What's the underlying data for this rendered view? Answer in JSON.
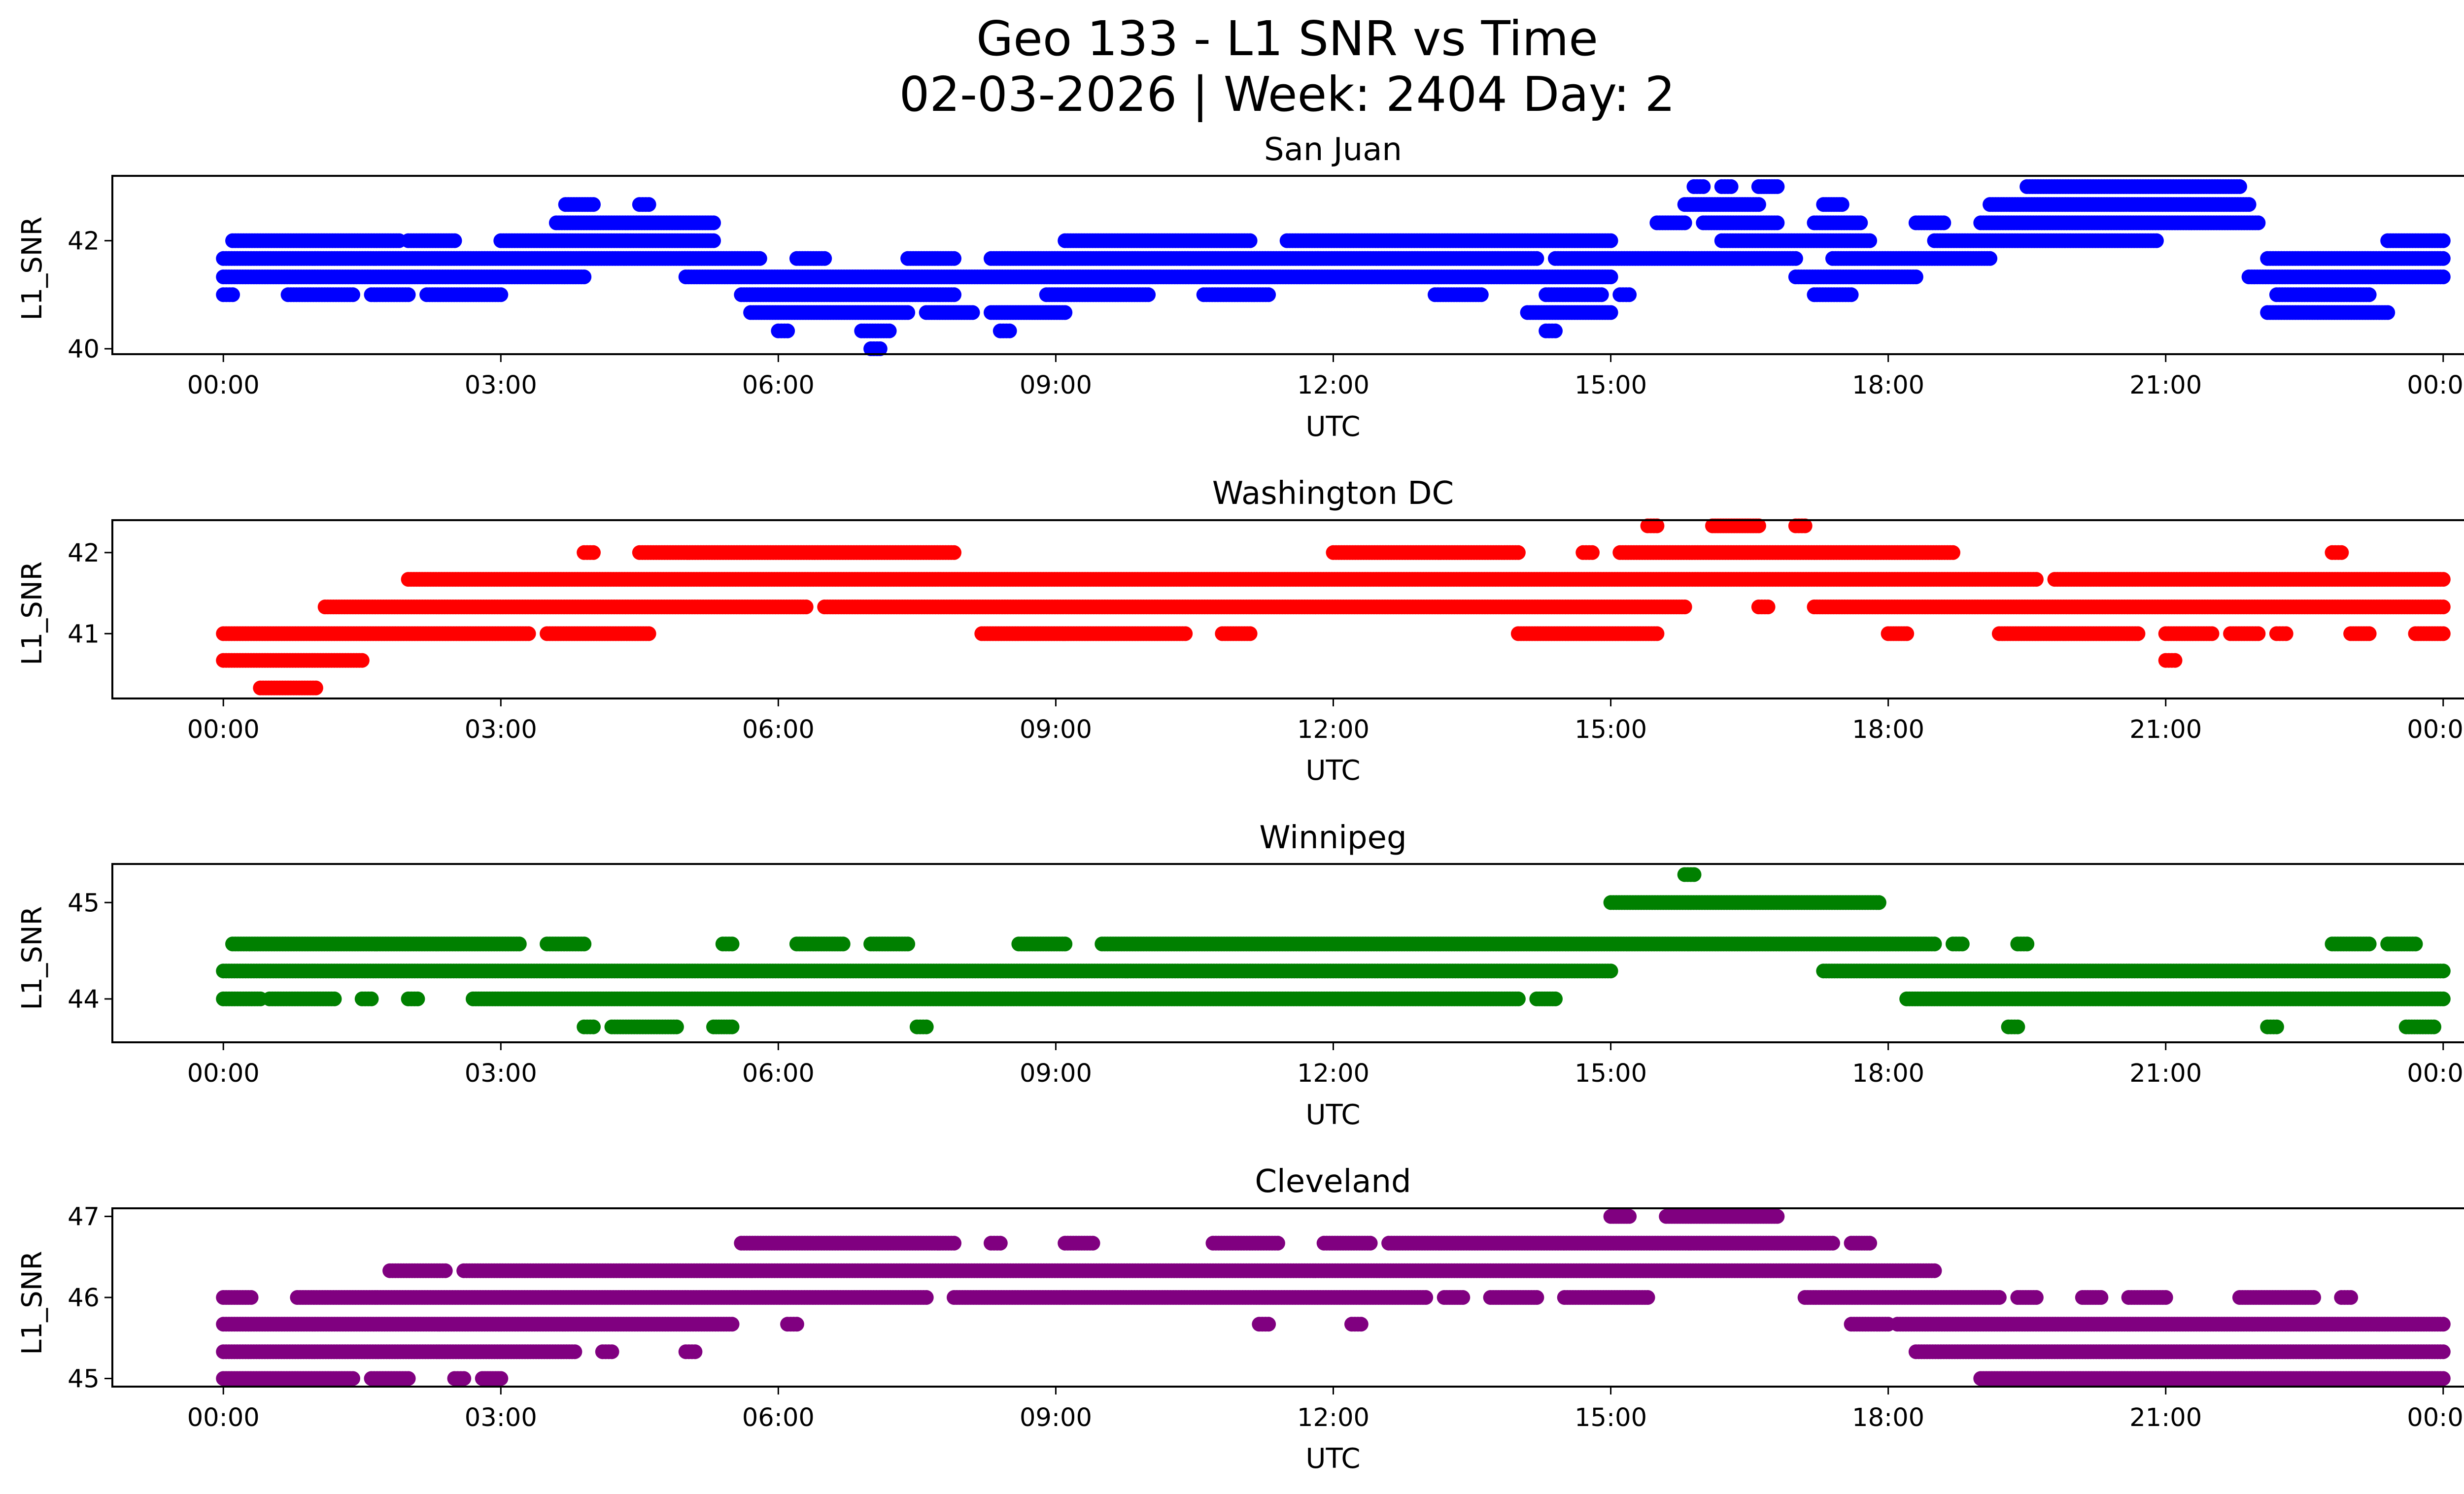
{
  "figure": {
    "title_line1": "Geo 133 - L1 SNR vs Time",
    "title_line2": "02-03-2026 | Week: 2404 Day: 2"
  },
  "chart_data": [
    {
      "type": "scatter",
      "title": "San Juan",
      "xlabel": "UTC",
      "ylabel": "L1_SNR",
      "color": "#0000ff",
      "xlim_hours": [
        -1.2,
        25.2
      ],
      "ylim": [
        39.9,
        43.2
      ],
      "yticks": [
        40,
        42
      ],
      "xticks": [
        "00:00",
        "03:00",
        "06:00",
        "09:00",
        "12:00",
        "15:00",
        "18:00",
        "21:00",
        "00:00"
      ],
      "bands": [
        {
          "y": 42.0,
          "ranges": [
            [
              0.1,
              1.9
            ],
            [
              2.0,
              2.5
            ],
            [
              3.0,
              5.3
            ],
            [
              9.1,
              11.1
            ],
            [
              11.5,
              15.0
            ],
            [
              16.2,
              17.8
            ],
            [
              18.5,
              20.9
            ],
            [
              23.4,
              24.0
            ]
          ]
        },
        {
          "y": 41.67,
          "ranges": [
            [
              0.0,
              5.8
            ],
            [
              6.2,
              6.5
            ],
            [
              7.4,
              7.9
            ],
            [
              8.3,
              14.2
            ],
            [
              14.4,
              17.0
            ],
            [
              17.4,
              19.1
            ],
            [
              22.1,
              24.0
            ]
          ]
        },
        {
          "y": 41.33,
          "ranges": [
            [
              0.0,
              3.9
            ],
            [
              5.0,
              15.0
            ],
            [
              17.0,
              18.3
            ],
            [
              21.9,
              24.0
            ]
          ]
        },
        {
          "y": 41.0,
          "ranges": [
            [
              0.0,
              0.1
            ],
            [
              0.7,
              1.4
            ],
            [
              1.6,
              2.0
            ],
            [
              2.2,
              3.0
            ],
            [
              5.6,
              7.9
            ],
            [
              8.9,
              10.0
            ],
            [
              10.6,
              11.3
            ],
            [
              13.1,
              13.6
            ],
            [
              14.3,
              14.9
            ],
            [
              15.1,
              15.2
            ],
            [
              17.2,
              17.6
            ],
            [
              22.2,
              23.2
            ]
          ]
        },
        {
          "y": 40.67,
          "ranges": [
            [
              5.7,
              7.4
            ],
            [
              7.6,
              8.1
            ],
            [
              8.3,
              9.1
            ],
            [
              14.1,
              15.0
            ],
            [
              22.1,
              23.4
            ]
          ]
        },
        {
          "y": 40.33,
          "ranges": [
            [
              6.0,
              6.1
            ],
            [
              6.9,
              7.2
            ],
            [
              8.4,
              8.5
            ],
            [
              14.3,
              14.4
            ]
          ]
        },
        {
          "y": 40.0,
          "ranges": [
            [
              7.0,
              7.1
            ]
          ]
        },
        {
          "y": 42.33,
          "ranges": [
            [
              3.6,
              5.3
            ],
            [
              15.5,
              15.8
            ],
            [
              16.0,
              16.8
            ],
            [
              17.2,
              17.7
            ],
            [
              18.3,
              18.6
            ],
            [
              19.0,
              22.0
            ]
          ]
        },
        {
          "y": 42.67,
          "ranges": [
            [
              3.7,
              4.0
            ],
            [
              4.5,
              4.6
            ],
            [
              15.8,
              16.6
            ],
            [
              17.3,
              17.5
            ],
            [
              19.1,
              21.9
            ]
          ]
        },
        {
          "y": 43.0,
          "ranges": [
            [
              15.9,
              16.0
            ],
            [
              16.2,
              16.3
            ],
            [
              16.6,
              16.8
            ],
            [
              19.5,
              21.8
            ]
          ]
        }
      ]
    },
    {
      "type": "scatter",
      "title": "Washington DC",
      "xlabel": "UTC",
      "ylabel": "L1_SNR",
      "color": "#ff0000",
      "xlim_hours": [
        -1.2,
        25.2
      ],
      "ylim": [
        40.2,
        42.4
      ],
      "yticks": [
        41,
        42
      ],
      "xticks": [
        "00:00",
        "03:00",
        "06:00",
        "09:00",
        "12:00",
        "15:00",
        "18:00",
        "21:00",
        "00:00"
      ],
      "bands": [
        {
          "y": 41.67,
          "ranges": [
            [
              2.0,
              19.6
            ],
            [
              19.8,
              24.0
            ]
          ]
        },
        {
          "y": 41.33,
          "ranges": [
            [
              1.1,
              6.3
            ],
            [
              6.5,
              15.8
            ],
            [
              16.6,
              16.7
            ],
            [
              17.2,
              24.0
            ]
          ]
        },
        {
          "y": 41.0,
          "ranges": [
            [
              0.0,
              3.3
            ],
            [
              3.5,
              4.6
            ],
            [
              8.2,
              10.4
            ],
            [
              10.8,
              11.1
            ],
            [
              14.0,
              15.5
            ],
            [
              18.0,
              18.2
            ],
            [
              19.2,
              20.7
            ],
            [
              21.0,
              21.5
            ],
            [
              21.7,
              22.0
            ],
            [
              22.2,
              22.3
            ],
            [
              23.0,
              23.2
            ],
            [
              23.7,
              24.0
            ]
          ]
        },
        {
          "y": 40.67,
          "ranges": [
            [
              0.0,
              1.5
            ],
            [
              21.0,
              21.1
            ]
          ]
        },
        {
          "y": 40.33,
          "ranges": [
            [
              0.4,
              1.0
            ]
          ]
        },
        {
          "y": 42.0,
          "ranges": [
            [
              3.9,
              4.0
            ],
            [
              4.5,
              7.9
            ],
            [
              12.0,
              14.0
            ],
            [
              14.7,
              14.8
            ],
            [
              15.1,
              18.7
            ],
            [
              22.8,
              22.9
            ]
          ]
        },
        {
          "y": 42.33,
          "ranges": [
            [
              15.4,
              15.5
            ],
            [
              16.1,
              16.6
            ],
            [
              17.0,
              17.1
            ]
          ]
        }
      ]
    },
    {
      "type": "scatter",
      "title": "Winnipeg",
      "xlabel": "UTC",
      "ylabel": "L1_SNR",
      "color": "#008000",
      "xlim_hours": [
        -1.2,
        25.2
      ],
      "ylim": [
        43.55,
        45.4
      ],
      "yticks": [
        44,
        45
      ],
      "xticks": [
        "00:00",
        "03:00",
        "06:00",
        "09:00",
        "12:00",
        "15:00",
        "18:00",
        "21:00",
        "00:00"
      ],
      "bands": [
        {
          "y": 44.0,
          "ranges": [
            [
              0.0,
              0.4
            ],
            [
              0.5,
              1.2
            ],
            [
              1.5,
              1.6
            ],
            [
              2.0,
              2.1
            ],
            [
              2.7,
              14.0
            ],
            [
              14.2,
              14.4
            ],
            [
              18.2,
              24.0
            ]
          ]
        },
        {
          "y": 44.29,
          "ranges": [
            [
              0.0,
              15.0
            ],
            [
              17.3,
              24.0
            ]
          ]
        },
        {
          "y": 44.57,
          "ranges": [
            [
              0.1,
              3.2
            ],
            [
              3.5,
              3.9
            ],
            [
              5.4,
              5.5
            ],
            [
              6.2,
              6.7
            ],
            [
              7.0,
              7.4
            ],
            [
              8.6,
              9.1
            ],
            [
              9.5,
              18.5
            ],
            [
              18.7,
              18.8
            ],
            [
              19.4,
              19.5
            ],
            [
              22.8,
              23.2
            ],
            [
              23.4,
              23.7
            ]
          ]
        },
        {
          "y": 43.71,
          "ranges": [
            [
              3.9,
              4.0
            ],
            [
              4.2,
              4.9
            ],
            [
              5.3,
              5.5
            ],
            [
              7.5,
              7.6
            ],
            [
              19.3,
              19.4
            ],
            [
              22.1,
              22.2
            ],
            [
              23.6,
              23.9
            ]
          ]
        },
        {
          "y": 45.0,
          "ranges": [
            [
              15.0,
              17.9
            ]
          ]
        },
        {
          "y": 45.29,
          "ranges": [
            [
              15.8,
              15.9
            ]
          ]
        }
      ]
    },
    {
      "type": "scatter",
      "title": "Cleveland",
      "xlabel": "UTC",
      "ylabel": "L1_SNR",
      "color": "#800080",
      "xlim_hours": [
        -1.2,
        25.2
      ],
      "ylim": [
        44.9,
        47.1
      ],
      "yticks": [
        45,
        46,
        47
      ],
      "xticks": [
        "00:00",
        "03:00",
        "06:00",
        "09:00",
        "12:00",
        "15:00",
        "18:00",
        "21:00",
        "00:00"
      ],
      "bands": [
        {
          "y": 45.0,
          "ranges": [
            [
              0.0,
              1.4
            ],
            [
              1.6,
              2.0
            ],
            [
              2.5,
              2.6
            ],
            [
              2.8,
              3.0
            ],
            [
              19.0,
              24.0
            ]
          ]
        },
        {
          "y": 45.33,
          "ranges": [
            [
              0.0,
              3.8
            ],
            [
              4.1,
              4.2
            ],
            [
              5.0,
              5.1
            ],
            [
              18.3,
              24.0
            ]
          ]
        },
        {
          "y": 45.67,
          "ranges": [
            [
              0.0,
              5.5
            ],
            [
              6.1,
              6.2
            ],
            [
              11.2,
              11.3
            ],
            [
              12.2,
              12.3
            ],
            [
              17.6,
              18.0
            ],
            [
              18.1,
              24.0
            ]
          ]
        },
        {
          "y": 46.0,
          "ranges": [
            [
              0.0,
              0.3
            ],
            [
              0.8,
              7.6
            ],
            [
              7.9,
              13.0
            ],
            [
              13.2,
              13.4
            ],
            [
              13.7,
              14.2
            ],
            [
              14.5,
              15.4
            ],
            [
              17.1,
              19.2
            ],
            [
              19.4,
              19.6
            ],
            [
              20.1,
              20.3
            ],
            [
              20.6,
              21.0
            ],
            [
              21.8,
              22.6
            ],
            [
              22.9,
              23.0
            ]
          ]
        },
        {
          "y": 46.33,
          "ranges": [
            [
              1.8,
              2.4
            ],
            [
              2.6,
              18.5
            ]
          ]
        },
        {
          "y": 46.67,
          "ranges": [
            [
              5.6,
              7.9
            ],
            [
              8.3,
              8.4
            ],
            [
              9.1,
              9.4
            ],
            [
              10.7,
              11.4
            ],
            [
              11.9,
              12.4
            ],
            [
              12.6,
              17.4
            ],
            [
              17.6,
              17.8
            ]
          ]
        },
        {
          "y": 47.0,
          "ranges": [
            [
              15.0,
              15.2
            ],
            [
              15.6,
              16.8
            ]
          ]
        }
      ]
    }
  ]
}
